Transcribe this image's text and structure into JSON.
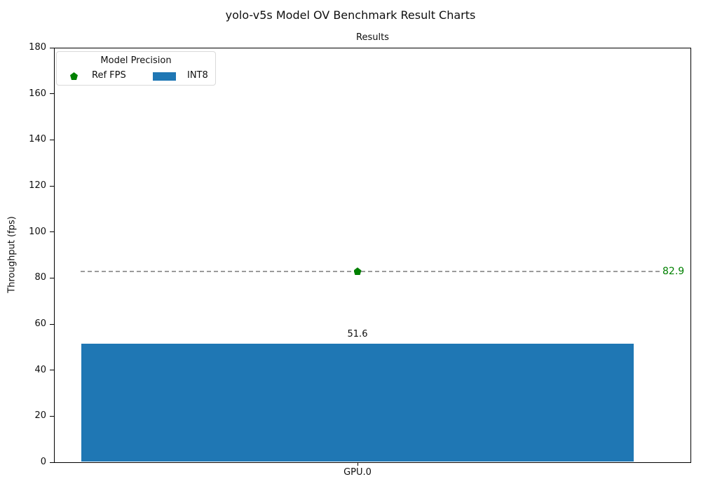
{
  "chart_data": {
    "type": "bar",
    "title": "yolo-v5s Model OV Benchmark Result Charts",
    "axes_title": "Results",
    "xlabel": "",
    "ylabel": "Throughput (fps)",
    "categories": [
      "GPU.0"
    ],
    "series": [
      {
        "name": "INT8",
        "type": "bar",
        "values": [
          51.6
        ],
        "color": "#1f77b4"
      },
      {
        "name": "Ref FPS",
        "type": "reference-marker",
        "values": [
          82.9
        ],
        "color": "#008000",
        "marker": "pentagon"
      }
    ],
    "bar_value_labels": [
      "51.6"
    ],
    "reference_line": {
      "value": 82.9,
      "label": "82.9",
      "line_style": "dashed",
      "line_color": "#9b9b9b",
      "label_color": "#008000"
    },
    "ylim": [
      0,
      180
    ],
    "yticks": [
      0,
      20,
      40,
      60,
      80,
      100,
      120,
      140,
      160,
      180
    ],
    "grid": false,
    "legend": {
      "title": "Model Precision",
      "position": "upper left",
      "entries": [
        {
          "label": "Ref FPS",
          "marker": "pentagon",
          "color": "#008000"
        },
        {
          "label": "INT8",
          "marker": "rect",
          "color": "#1f77b4"
        }
      ]
    }
  }
}
